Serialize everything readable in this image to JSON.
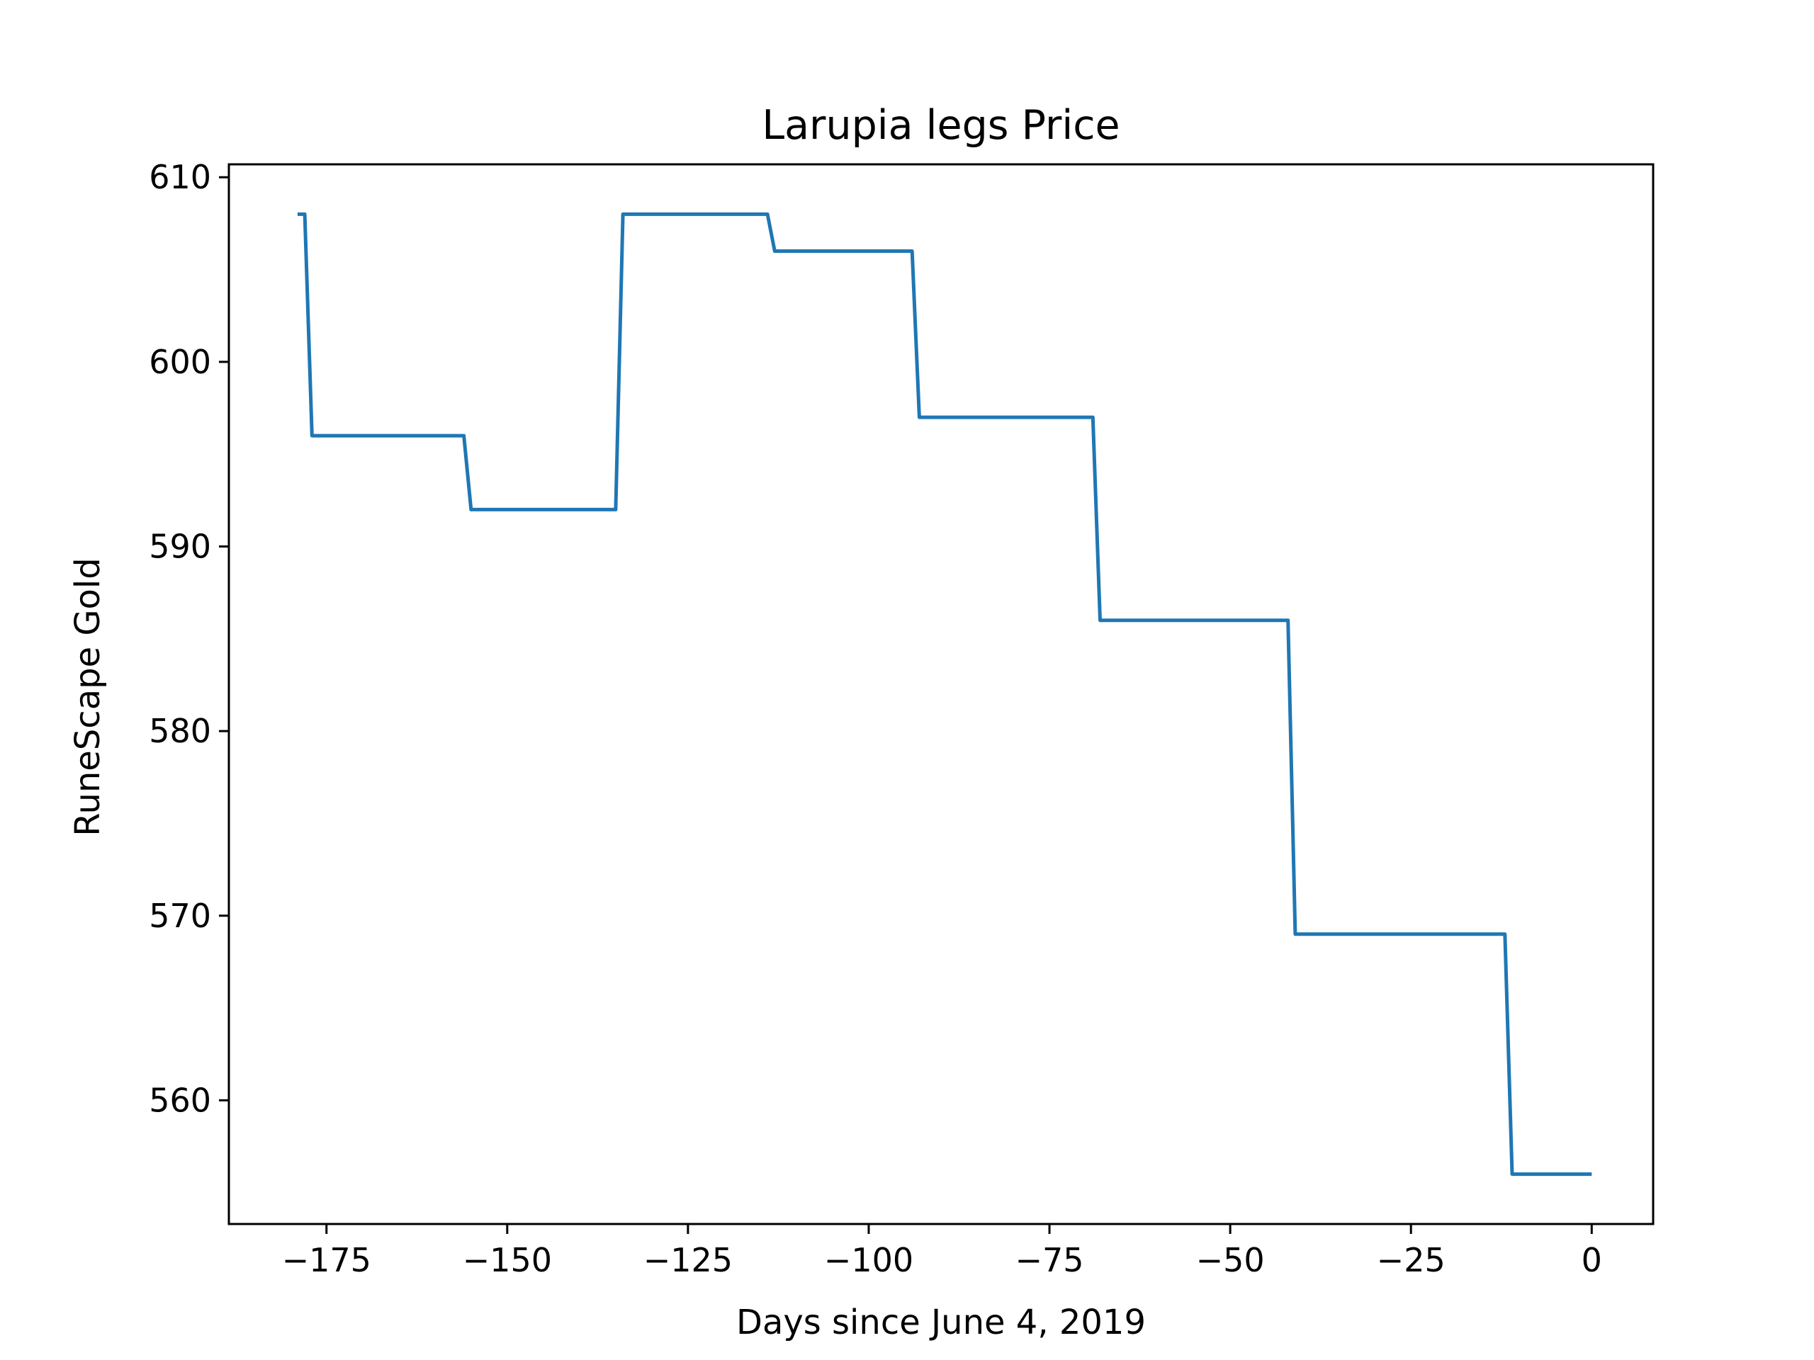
{
  "chart_data": {
    "type": "line",
    "title": "Larupia legs Price",
    "xlabel": "Days since June 4, 2019",
    "ylabel": "RuneScape Gold",
    "xlim": [
      -188.5,
      8.5
    ],
    "ylim": [
      553.3,
      610.7
    ],
    "xticks": [
      -175,
      -150,
      -125,
      -100,
      -75,
      -50,
      -25,
      0
    ],
    "xtick_labels": [
      "−175",
      "−150",
      "−125",
      "−100",
      "−75",
      "−50",
      "−25",
      "0"
    ],
    "yticks": [
      560,
      570,
      580,
      590,
      600,
      610
    ],
    "ytick_labels": [
      "560",
      "570",
      "580",
      "590",
      "600",
      "610"
    ],
    "grid": false,
    "series": [
      {
        "color": "#1f77b4",
        "x": [
          -179,
          -178,
          -177,
          -156,
          -155,
          -135,
          -134,
          -114,
          -113,
          -94,
          -93,
          -69,
          -68,
          -42,
          -41,
          -12,
          -11,
          0
        ],
        "y": [
          608,
          608,
          596,
          596,
          592,
          592,
          608,
          608,
          606,
          606,
          597,
          597,
          586,
          586,
          569,
          569,
          556,
          556
        ]
      }
    ]
  }
}
